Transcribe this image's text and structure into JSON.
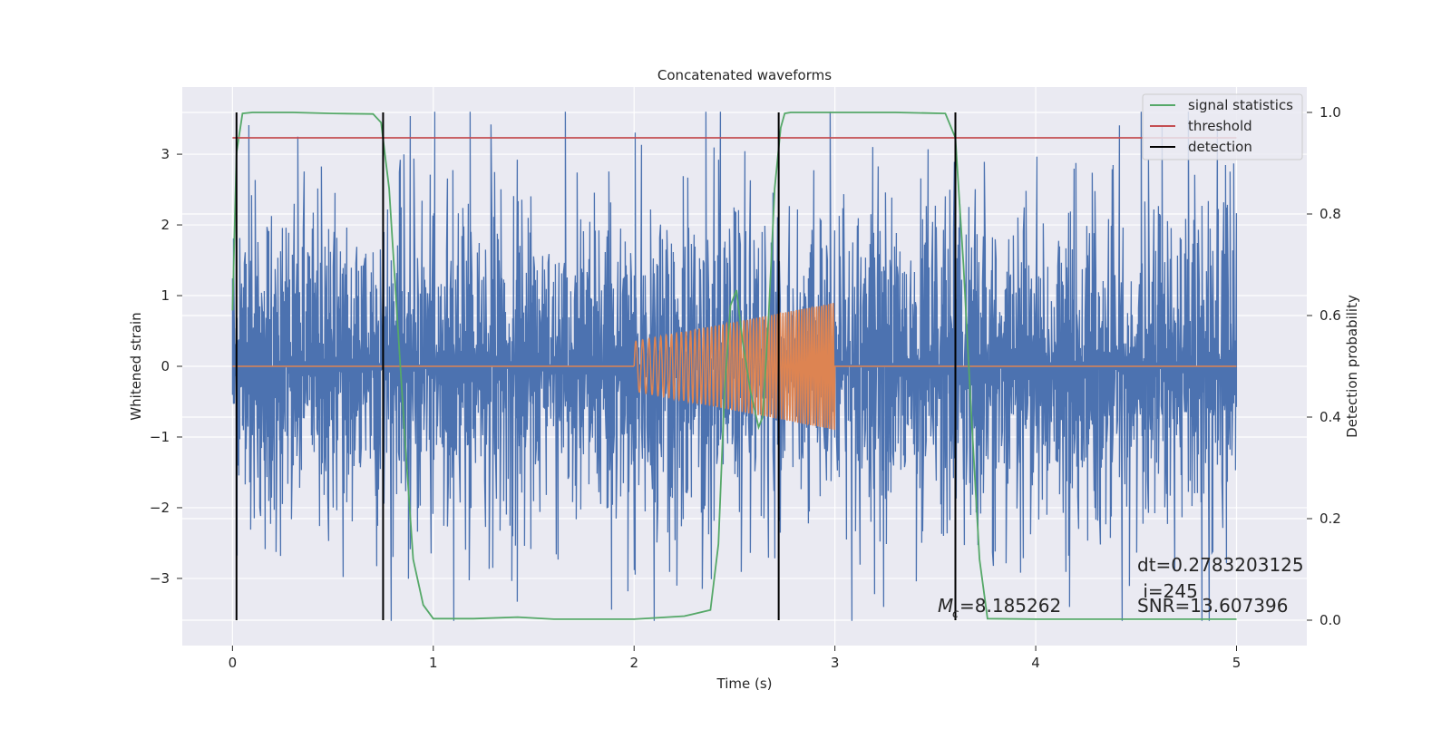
{
  "chart_data": {
    "type": "line",
    "title": "Concatenated waveforms",
    "xlabel": "Time (s)",
    "ylabel_left": "Whitened strain",
    "ylabel_right": "Detection probability",
    "xlim": [
      -0.25,
      5.35
    ],
    "ylim_left": [
      -3.95,
      3.95
    ],
    "ylim_right": [
      -0.05,
      1.05
    ],
    "xticks": [
      0,
      1,
      2,
      3,
      4,
      5
    ],
    "yticks_left": [
      -3,
      -2,
      -1,
      0,
      1,
      2,
      3
    ],
    "yticks_right": [
      0.0,
      0.2,
      0.4,
      0.6,
      0.8,
      1.0
    ],
    "ytick_labels_right": [
      "0.0",
      "0.2",
      "0.4",
      "0.6",
      "0.8",
      "1.0"
    ],
    "legend": {
      "position": "top-right",
      "entries": [
        "signal statistics",
        "threshold",
        "detection"
      ]
    },
    "grid": true,
    "series": [
      {
        "name": "signal statistics",
        "axis": "right",
        "color": "#55a868",
        "x": [
          0.0,
          0.02,
          0.05,
          0.1,
          0.3,
          0.5,
          0.7,
          0.74,
          0.78,
          0.82,
          0.86,
          0.9,
          0.95,
          1.0,
          1.2,
          1.42,
          1.6,
          2.0,
          2.25,
          2.38,
          2.42,
          2.45,
          2.48,
          2.51,
          2.54,
          2.58,
          2.62,
          2.64,
          2.67,
          2.7,
          2.73,
          2.75,
          2.78,
          3.0,
          3.3,
          3.55,
          3.6,
          3.64,
          3.68,
          3.72,
          3.76,
          4.0,
          5.0
        ],
        "values": [
          0.61,
          0.92,
          0.998,
          1.0,
          1.0,
          0.998,
          0.997,
          0.98,
          0.85,
          0.6,
          0.35,
          0.12,
          0.03,
          0.003,
          0.003,
          0.006,
          0.002,
          0.002,
          0.008,
          0.02,
          0.15,
          0.45,
          0.62,
          0.65,
          0.55,
          0.45,
          0.38,
          0.4,
          0.6,
          0.85,
          0.97,
          0.998,
          1.0,
          1.0,
          1.0,
          0.998,
          0.95,
          0.7,
          0.4,
          0.12,
          0.003,
          0.002,
          0.002
        ]
      },
      {
        "name": "threshold",
        "axis": "right",
        "color": "#c44e52",
        "x": [
          0.0,
          5.0
        ],
        "values": [
          0.95,
          0.95
        ]
      }
    ],
    "detections": {
      "name": "detection",
      "color": "#000000",
      "x": [
        0.02,
        0.75,
        2.72,
        3.6
      ]
    },
    "strain": {
      "noise": {
        "color": "#4c72b0",
        "x_range": [
          0.0,
          5.0
        ],
        "typical_amplitude": 1.3,
        "max": 3.6,
        "min": -3.6
      },
      "injected_chirp": {
        "color": "#dd8452",
        "x_range": [
          2.0,
          3.0
        ],
        "amplitude_start": 0.35,
        "amplitude_end": 0.9
      }
    },
    "annotations": [
      "dt=0.2783203125",
      " i=245",
      "=8.185262",
      "SNR=13.607396"
    ],
    "mc_symbol": {
      "main": "M",
      "sub": "c"
    }
  }
}
